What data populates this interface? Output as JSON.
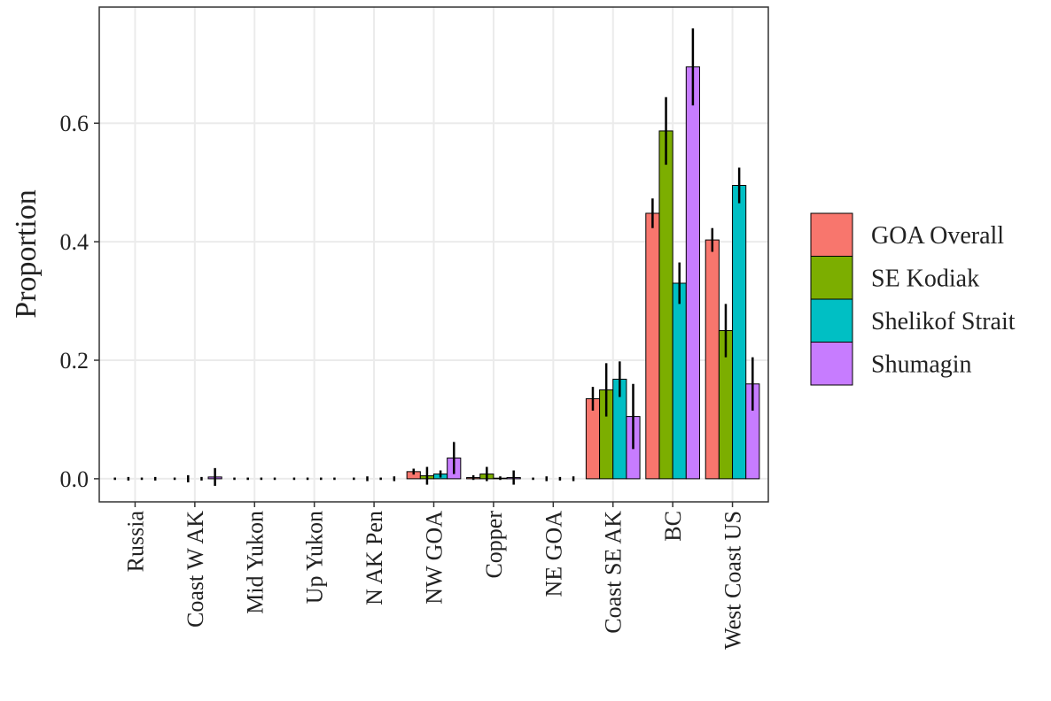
{
  "chart_data": {
    "type": "bar",
    "y_label": "Proportion",
    "categories": [
      "Russia",
      "Coast W AK",
      "Mid Yukon",
      "Up Yukon",
      "N AK Pen",
      "NW GOA",
      "Copper",
      "NE GOA",
      "Coast SE AK",
      "BC",
      "West Coast US"
    ],
    "series": [
      {
        "name": "GOA Overall",
        "color": "#F8766D",
        "values": [
          0,
          0,
          0,
          0,
          0,
          0.012,
          0.002,
          0,
          0.135,
          0.448,
          0.403
        ],
        "errors": [
          0.002,
          0.002,
          0.002,
          0.002,
          0.002,
          0.005,
          0.004,
          0.002,
          0.02,
          0.025,
          0.02
        ]
      },
      {
        "name": "SE Kodiak",
        "color": "#7CAE00",
        "values": [
          0,
          0,
          0,
          0,
          0,
          0.005,
          0.008,
          0,
          0.15,
          0.587,
          0.25
        ],
        "errors": [
          0.003,
          0.006,
          0.002,
          0.002,
          0.004,
          0.015,
          0.012,
          0.004,
          0.045,
          0.057,
          0.045
        ]
      },
      {
        "name": "Shelikof Strait",
        "color": "#00BFC4",
        "values": [
          0,
          0,
          0,
          0,
          0,
          0.008,
          0.001,
          0,
          0.168,
          0.33,
          0.495
        ],
        "errors": [
          0.002,
          0.003,
          0.002,
          0.002,
          0.002,
          0.006,
          0.003,
          0.003,
          0.03,
          0.035,
          0.03
        ]
      },
      {
        "name": "Shumagin",
        "color": "#C77CFF",
        "values": [
          0,
          0.003,
          0,
          0,
          0,
          0.035,
          0.002,
          0,
          0.105,
          0.695,
          0.16
        ],
        "errors": [
          0.003,
          0.015,
          0.002,
          0.002,
          0.004,
          0.027,
          0.012,
          0.004,
          0.055,
          0.065,
          0.045
        ]
      }
    ],
    "ylim": [
      -0.039,
      0.796
    ],
    "yticks": [
      {
        "value": 0,
        "label": "0.0"
      },
      0.2,
      0.4,
      0.6
    ],
    "grid": true,
    "legend": "right"
  }
}
